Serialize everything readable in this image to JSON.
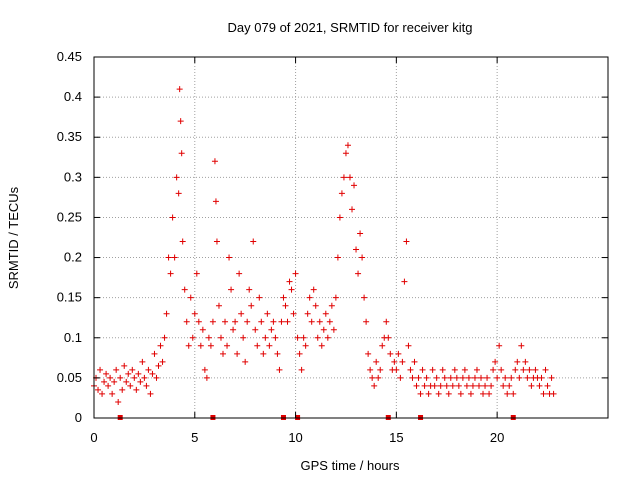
{
  "chart_data": {
    "type": "scatter",
    "title": "Day 079 of 2021, SRMTID for receiver kitg",
    "xlabel": "GPS time / hours",
    "ylabel": "SRMTID / TECUs",
    "xlim": [
      0,
      25.5
    ],
    "ylim": [
      0,
      0.45
    ],
    "xticks": [
      0,
      5,
      10,
      15,
      20
    ],
    "xtick_labels": [
      "0",
      "5",
      "10",
      "15",
      "20"
    ],
    "yticks": [
      0,
      0.05,
      0.1,
      0.15,
      0.2,
      0.25,
      0.3,
      0.35,
      0.4,
      0.45
    ],
    "ytick_labels": [
      "0",
      "0.05",
      "0.1",
      "0.15",
      "0.2",
      "0.25",
      "0.3",
      "0.35",
      "0.4",
      "0.45"
    ],
    "grid": true,
    "marker": "plus",
    "color": "#e00000",
    "series": [
      {
        "name": "SRMTID",
        "points": [
          [
            0.0,
            0.04
          ],
          [
            0.1,
            0.05
          ],
          [
            0.2,
            0.035
          ],
          [
            0.3,
            0.06
          ],
          [
            0.4,
            0.03
          ],
          [
            0.5,
            0.045
          ],
          [
            0.6,
            0.055
          ],
          [
            0.7,
            0.04
          ],
          [
            0.8,
            0.05
          ],
          [
            0.9,
            0.03
          ],
          [
            1.0,
            0.045
          ],
          [
            1.1,
            0.06
          ],
          [
            1.2,
            0.02
          ],
          [
            1.3,
            0.05
          ],
          [
            1.4,
            0.035
          ],
          [
            1.5,
            0.065
          ],
          [
            1.6,
            0.045
          ],
          [
            1.7,
            0.055
          ],
          [
            1.8,
            0.04
          ],
          [
            1.9,
            0.06
          ],
          [
            2.0,
            0.05
          ],
          [
            2.1,
            0.035
          ],
          [
            2.2,
            0.055
          ],
          [
            2.3,
            0.045
          ],
          [
            2.4,
            0.07
          ],
          [
            2.5,
            0.05
          ],
          [
            2.6,
            0.04
          ],
          [
            2.7,
            0.06
          ],
          [
            2.8,
            0.03
          ],
          [
            2.9,
            0.055
          ],
          [
            3.0,
            0.08
          ],
          [
            3.1,
            0.05
          ],
          [
            3.2,
            0.065
          ],
          [
            3.3,
            0.09
          ],
          [
            3.4,
            0.07
          ],
          [
            3.5,
            0.1
          ],
          [
            3.6,
            0.13
          ],
          [
            3.7,
            0.2
          ],
          [
            3.8,
            0.18
          ],
          [
            3.9,
            0.25
          ],
          [
            4.0,
            0.2
          ],
          [
            4.1,
            0.3
          ],
          [
            4.2,
            0.28
          ],
          [
            4.25,
            0.41
          ],
          [
            4.3,
            0.37
          ],
          [
            4.35,
            0.33
          ],
          [
            4.4,
            0.22
          ],
          [
            4.5,
            0.16
          ],
          [
            4.6,
            0.12
          ],
          [
            4.7,
            0.09
          ],
          [
            4.8,
            0.15
          ],
          [
            4.9,
            0.1
          ],
          [
            5.0,
            0.13
          ],
          [
            5.1,
            0.18
          ],
          [
            5.2,
            0.12
          ],
          [
            5.3,
            0.09
          ],
          [
            5.4,
            0.11
          ],
          [
            5.5,
            0.06
          ],
          [
            5.6,
            0.05
          ],
          [
            5.7,
            0.1
          ],
          [
            5.8,
            0.09
          ],
          [
            5.9,
            0.12
          ],
          [
            6.0,
            0.32
          ],
          [
            6.05,
            0.27
          ],
          [
            6.1,
            0.22
          ],
          [
            6.2,
            0.14
          ],
          [
            6.3,
            0.1
          ],
          [
            6.4,
            0.08
          ],
          [
            6.5,
            0.12
          ],
          [
            6.6,
            0.09
          ],
          [
            6.7,
            0.2
          ],
          [
            6.8,
            0.16
          ],
          [
            6.9,
            0.11
          ],
          [
            7.0,
            0.12
          ],
          [
            7.1,
            0.08
          ],
          [
            7.2,
            0.18
          ],
          [
            7.3,
            0.13
          ],
          [
            7.4,
            0.1
          ],
          [
            7.5,
            0.07
          ],
          [
            7.6,
            0.12
          ],
          [
            7.7,
            0.16
          ],
          [
            7.8,
            0.14
          ],
          [
            7.9,
            0.22
          ],
          [
            8.0,
            0.11
          ],
          [
            8.1,
            0.09
          ],
          [
            8.2,
            0.15
          ],
          [
            8.3,
            0.12
          ],
          [
            8.4,
            0.08
          ],
          [
            8.5,
            0.1
          ],
          [
            8.6,
            0.13
          ],
          [
            8.7,
            0.09
          ],
          [
            8.8,
            0.11
          ],
          [
            8.9,
            0.12
          ],
          [
            9.0,
            0.1
          ],
          [
            9.1,
            0.08
          ],
          [
            9.2,
            0.06
          ],
          [
            9.3,
            0.12
          ],
          [
            9.4,
            0.15
          ],
          [
            9.5,
            0.14
          ],
          [
            9.6,
            0.12
          ],
          [
            9.7,
            0.17
          ],
          [
            9.8,
            0.16
          ],
          [
            9.9,
            0.13
          ],
          [
            10.0,
            0.18
          ],
          [
            10.1,
            0.1
          ],
          [
            10.2,
            0.08
          ],
          [
            10.3,
            0.06
          ],
          [
            10.4,
            0.1
          ],
          [
            10.5,
            0.09
          ],
          [
            10.6,
            0.13
          ],
          [
            10.7,
            0.15
          ],
          [
            10.8,
            0.12
          ],
          [
            10.9,
            0.16
          ],
          [
            11.0,
            0.14
          ],
          [
            11.1,
            0.1
          ],
          [
            11.2,
            0.12
          ],
          [
            11.3,
            0.09
          ],
          [
            11.4,
            0.11
          ],
          [
            11.5,
            0.13
          ],
          [
            11.6,
            0.1
          ],
          [
            11.7,
            0.12
          ],
          [
            11.8,
            0.14
          ],
          [
            11.9,
            0.11
          ],
          [
            12.0,
            0.15
          ],
          [
            12.1,
            0.2
          ],
          [
            12.2,
            0.25
          ],
          [
            12.3,
            0.28
          ],
          [
            12.4,
            0.3
          ],
          [
            12.5,
            0.33
          ],
          [
            12.6,
            0.34
          ],
          [
            12.7,
            0.3
          ],
          [
            12.8,
            0.26
          ],
          [
            12.9,
            0.29
          ],
          [
            13.0,
            0.21
          ],
          [
            13.1,
            0.18
          ],
          [
            13.2,
            0.23
          ],
          [
            13.3,
            0.2
          ],
          [
            13.4,
            0.15
          ],
          [
            13.5,
            0.12
          ],
          [
            13.6,
            0.08
          ],
          [
            13.7,
            0.06
          ],
          [
            13.8,
            0.05
          ],
          [
            13.9,
            0.04
          ],
          [
            14.0,
            0.07
          ],
          [
            14.1,
            0.05
          ],
          [
            14.2,
            0.06
          ],
          [
            14.3,
            0.09
          ],
          [
            14.4,
            0.1
          ],
          [
            14.5,
            0.12
          ],
          [
            14.6,
            0.1
          ],
          [
            14.7,
            0.08
          ],
          [
            14.8,
            0.06
          ],
          [
            14.9,
            0.07
          ],
          [
            15.0,
            0.06
          ],
          [
            15.1,
            0.08
          ],
          [
            15.2,
            0.05
          ],
          [
            15.3,
            0.07
          ],
          [
            15.4,
            0.17
          ],
          [
            15.5,
            0.22
          ],
          [
            15.6,
            0.09
          ],
          [
            15.7,
            0.06
          ],
          [
            15.8,
            0.05
          ],
          [
            15.9,
            0.07
          ],
          [
            16.0,
            0.04
          ],
          [
            16.1,
            0.05
          ],
          [
            16.2,
            0.03
          ],
          [
            16.3,
            0.06
          ],
          [
            16.4,
            0.04
          ],
          [
            16.5,
            0.05
          ],
          [
            16.6,
            0.03
          ],
          [
            16.7,
            0.04
          ],
          [
            16.8,
            0.06
          ],
          [
            16.9,
            0.04
          ],
          [
            17.0,
            0.05
          ],
          [
            17.1,
            0.03
          ],
          [
            17.2,
            0.04
          ],
          [
            17.3,
            0.06
          ],
          [
            17.4,
            0.05
          ],
          [
            17.5,
            0.04
          ],
          [
            17.6,
            0.03
          ],
          [
            17.7,
            0.05
          ],
          [
            17.8,
            0.04
          ],
          [
            17.9,
            0.06
          ],
          [
            18.0,
            0.05
          ],
          [
            18.1,
            0.04
          ],
          [
            18.2,
            0.03
          ],
          [
            18.3,
            0.05
          ],
          [
            18.4,
            0.06
          ],
          [
            18.5,
            0.04
          ],
          [
            18.6,
            0.05
          ],
          [
            18.7,
            0.03
          ],
          [
            18.8,
            0.04
          ],
          [
            18.9,
            0.05
          ],
          [
            19.0,
            0.06
          ],
          [
            19.1,
            0.04
          ],
          [
            19.2,
            0.05
          ],
          [
            19.3,
            0.03
          ],
          [
            19.4,
            0.04
          ],
          [
            19.5,
            0.05
          ],
          [
            19.6,
            0.03
          ],
          [
            19.7,
            0.04
          ],
          [
            19.8,
            0.06
          ],
          [
            19.9,
            0.07
          ],
          [
            20.0,
            0.05
          ],
          [
            20.1,
            0.09
          ],
          [
            20.2,
            0.06
          ],
          [
            20.3,
            0.04
          ],
          [
            20.4,
            0.05
          ],
          [
            20.5,
            0.03
          ],
          [
            20.6,
            0.04
          ],
          [
            20.7,
            0.05
          ],
          [
            20.8,
            0.03
          ],
          [
            20.9,
            0.06
          ],
          [
            21.0,
            0.07
          ],
          [
            21.1,
            0.05
          ],
          [
            21.2,
            0.09
          ],
          [
            21.3,
            0.06
          ],
          [
            21.4,
            0.07
          ],
          [
            21.5,
            0.05
          ],
          [
            21.6,
            0.06
          ],
          [
            21.7,
            0.04
          ],
          [
            21.8,
            0.05
          ],
          [
            21.9,
            0.06
          ],
          [
            22.0,
            0.05
          ],
          [
            22.1,
            0.04
          ],
          [
            22.2,
            0.05
          ],
          [
            22.3,
            0.03
          ],
          [
            22.4,
            0.06
          ],
          [
            22.5,
            0.04
          ],
          [
            22.6,
            0.03
          ],
          [
            22.7,
            0.05
          ],
          [
            22.8,
            0.03
          ]
        ]
      }
    ],
    "gap_markers_x": [
      1.3,
      5.9,
      9.4,
      10.1,
      14.6,
      16.2,
      20.8
    ]
  }
}
